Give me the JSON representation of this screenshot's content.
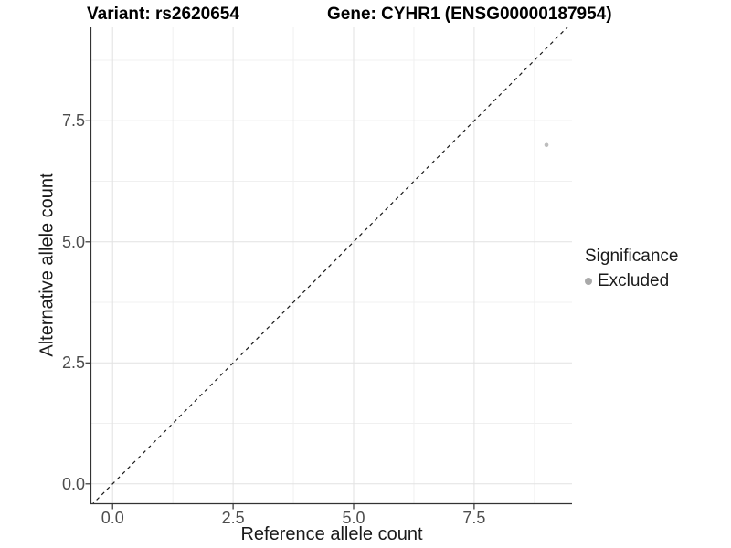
{
  "figure": {
    "title_left": "Variant: rs2620654",
    "title_right": "Gene: CYHR1 (ENSG00000187954)"
  },
  "chart_data": {
    "type": "scatter",
    "title": "Variant: rs2620654 — Gene: CYHR1 (ENSG00000187954)",
    "xlabel": "Reference allele count",
    "ylabel": "Alternative allele count",
    "xlim": [
      -0.44,
      9.53
    ],
    "ylim": [
      -0.4,
      9.43
    ],
    "x_ticks": [
      0,
      2.5,
      5,
      7.5
    ],
    "x_tick_labels": [
      "0.0",
      "2.5",
      "5.0",
      "7.5"
    ],
    "y_ticks": [
      0,
      2.5,
      5,
      7.5
    ],
    "y_tick_labels": [
      "0.0",
      "2.5",
      "5.0",
      "7.5"
    ],
    "x_minor_ticks": [
      1.25,
      3.75,
      6.25,
      8.75
    ],
    "y_minor_ticks": [
      1.25,
      3.75,
      6.25,
      8.75
    ],
    "grid": true,
    "legend_position": "right",
    "series": [
      {
        "name": "Excluded",
        "color": "#bdbdbd",
        "point_radius": 2.3,
        "points": [
          {
            "x": 9,
            "y": 7
          }
        ]
      }
    ],
    "identity_line": {
      "slope": 1,
      "intercept": 0,
      "style": "dashed",
      "color": "#1a1a1a"
    },
    "legend": {
      "title": "Significance",
      "items": [
        {
          "label": "Excluded",
          "color": "#a9a9a9"
        }
      ]
    }
  },
  "colors": {
    "background": "#ffffff",
    "grid_major": "#e2e2e2",
    "grid_minor": "#f0f0f0",
    "axis_line": "#333333",
    "tick_mark": "#333333",
    "tick_label": "#4d4d4d",
    "axis_title": "#1a1a1a",
    "plot_title": "#000000"
  }
}
